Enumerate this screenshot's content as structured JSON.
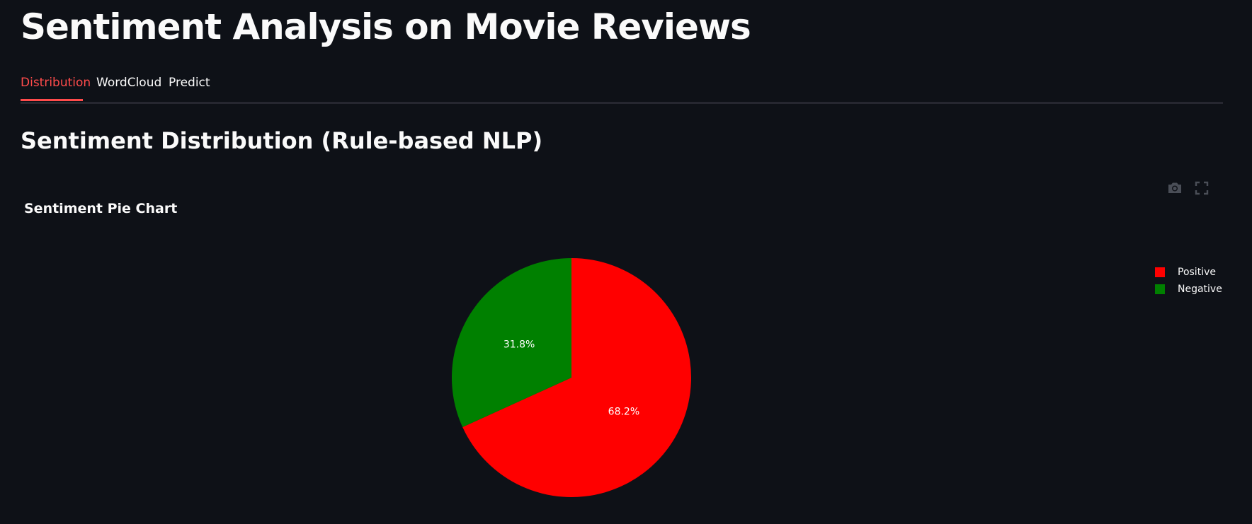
{
  "app": {
    "title": "Sentiment Analysis on Movie Reviews"
  },
  "tabs": [
    {
      "label": "Distribution",
      "active": true
    },
    {
      "label": "WordCloud",
      "active": false
    },
    {
      "label": "Predict",
      "active": false
    }
  ],
  "section": {
    "title": "Sentiment Distribution (Rule-based NLP)"
  },
  "modebar": {
    "icons": [
      "camera-icon",
      "fullscreen-icon"
    ]
  },
  "colors": {
    "background": "#0e1117",
    "accent": "#ff4b4b",
    "positive": "#ff0000",
    "negative": "#008000"
  },
  "chart_data": {
    "type": "pie",
    "title": "Sentiment Pie Chart",
    "categories": [
      "Positive",
      "Negative"
    ],
    "values": [
      68.2,
      31.8
    ],
    "labels": [
      "68.2%",
      "31.8%"
    ],
    "colors": [
      "#ff0000",
      "#008000"
    ],
    "legend_position": "top-right"
  }
}
